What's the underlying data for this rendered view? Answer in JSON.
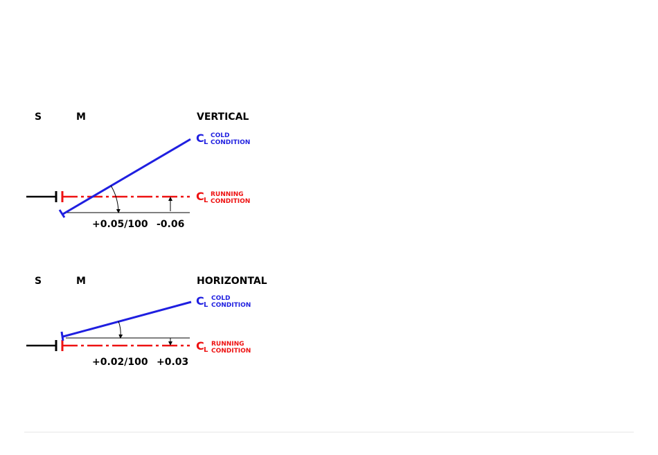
{
  "colors": {
    "cold": "#1f1fe0",
    "running": "#ee1111",
    "shaft": "#000000",
    "footer_rule": "#e6e6e6"
  },
  "vertical": {
    "s_label": "S",
    "m_label": "M",
    "title": "VERTICAL",
    "cold": {
      "c": "C",
      "sub": "L",
      "line1": "COLD",
      "line2": "CONDITION"
    },
    "running": {
      "c": "C",
      "sub": "L",
      "line1": "RUNNING",
      "line2": "CONDITION"
    },
    "slope_value": "+0.05/100",
    "offset_value": "-0.06"
  },
  "horizontal": {
    "s_label": "S",
    "m_label": "M",
    "title": "HORIZONTAL",
    "cold": {
      "c": "C",
      "sub": "L",
      "line1": "COLD",
      "line2": "CONDITION"
    },
    "running": {
      "c": "C",
      "sub": "L",
      "line1": "RUNNING",
      "line2": "CONDITION"
    },
    "slope_value": "+0.02/100",
    "offset_value": "+0.03"
  }
}
